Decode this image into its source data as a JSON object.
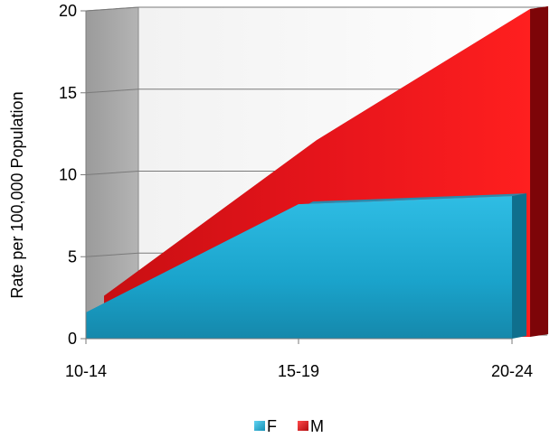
{
  "chart_data": {
    "type": "area",
    "title": "",
    "xlabel": "",
    "ylabel": "Rate per 100,000 Population",
    "categories": [
      "10-14",
      "15-19",
      "20-24"
    ],
    "series": [
      {
        "name": "F",
        "values": [
          1.6,
          8.2,
          8.7
        ],
        "color": "#1ba7cf"
      },
      {
        "name": "M",
        "values": [
          2.5,
          12.0,
          20.0
        ],
        "color": "#e2141c"
      }
    ],
    "ylim": [
      0,
      20
    ],
    "yticks": [
      0,
      5,
      10,
      15,
      20
    ],
    "grid": true,
    "stacked": false,
    "three_d": true,
    "legend_position": "bottom"
  }
}
